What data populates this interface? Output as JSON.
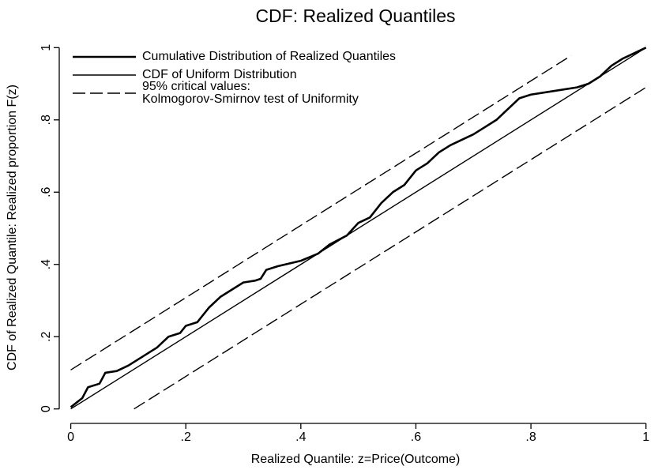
{
  "chart_data": {
    "type": "line",
    "title": "CDF: Realized Quantiles",
    "x_label": "Realized Quantile: z=Price(Outcome)",
    "y_label": "CDF of Realized Quantile: Realized proportion F(z)",
    "xlim": [
      -0.02,
      1.01
    ],
    "ylim": [
      -0.04,
      1.04
    ],
    "xticks": [
      0,
      {
        "value": 0.2,
        "label": ".2"
      },
      {
        "value": 0.4,
        "label": ".4"
      },
      {
        "value": 0.6,
        "label": ".6"
      },
      {
        "value": 0.8,
        "label": ".8"
      },
      1
    ],
    "yticks": [
      0,
      {
        "value": 0.2,
        "label": ".2"
      },
      {
        "value": 0.4,
        "label": ".4"
      },
      {
        "value": 0.6,
        "label": ".6"
      },
      {
        "value": 0.8,
        "label": ".8"
      },
      1
    ],
    "legend": "top-left",
    "series": [
      {
        "name": "Cumulative Distribution of Realized Quantiles",
        "color": "#000",
        "style": "thick",
        "x": [
          0,
          0.02,
          0.03,
          0.05,
          0.06,
          0.08,
          0.1,
          0.12,
          0.15,
          0.17,
          0.19,
          0.2,
          0.22,
          0.24,
          0.26,
          0.28,
          0.3,
          0.32,
          0.33,
          0.34,
          0.36,
          0.4,
          0.43,
          0.45,
          0.48,
          0.5,
          0.52,
          0.54,
          0.56,
          0.58,
          0.6,
          0.62,
          0.64,
          0.66,
          0.68,
          0.7,
          0.72,
          0.74,
          0.76,
          0.78,
          0.8,
          0.84,
          0.88,
          0.9,
          0.92,
          0.94,
          0.96,
          0.98,
          1
        ],
        "values": [
          0.005,
          0.03,
          0.06,
          0.07,
          0.1,
          0.105,
          0.12,
          0.14,
          0.17,
          0.2,
          0.21,
          0.23,
          0.24,
          0.28,
          0.31,
          0.33,
          0.35,
          0.355,
          0.36,
          0.385,
          0.395,
          0.41,
          0.43,
          0.455,
          0.48,
          0.515,
          0.53,
          0.57,
          0.6,
          0.62,
          0.66,
          0.68,
          0.71,
          0.73,
          0.745,
          0.76,
          0.78,
          0.8,
          0.83,
          0.86,
          0.87,
          0.88,
          0.89,
          0.9,
          0.92,
          0.95,
          0.97,
          0.985,
          1
        ]
      },
      {
        "name": "CDF of Uniform Distribution",
        "color": "#000",
        "style": "solid",
        "x": [
          0,
          1
        ],
        "values": [
          0,
          1
        ]
      },
      {
        "name": "95% critical values:\nKolmogorov-Smirnov test of Uniformity",
        "color": "#000",
        "style": "dashed",
        "x": [
          0,
          0.87,
          null,
          0.11,
          1
        ],
        "values": [
          0.108,
          0.978,
          null,
          0,
          0.89
        ]
      }
    ]
  }
}
